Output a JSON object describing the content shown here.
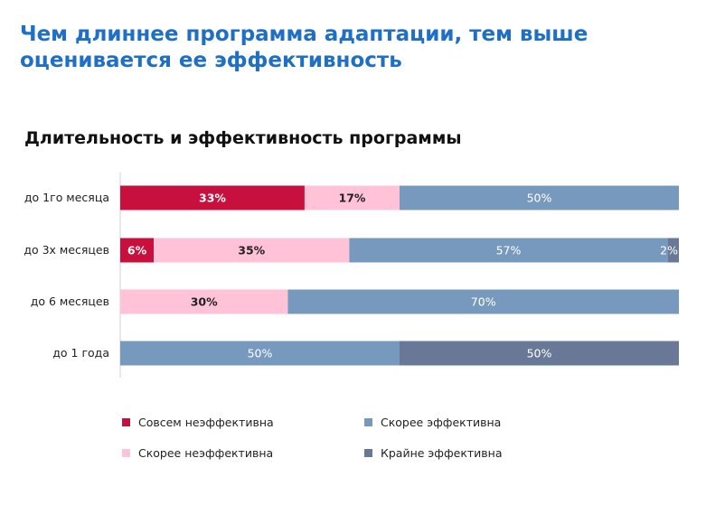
{
  "headline": "Чем длиннее программа адаптации, тем выше оценивается ее эффективность",
  "chart_data": {
    "type": "bar",
    "orientation": "horizontal",
    "stacked": true,
    "title": "Длительность и эффективность программы",
    "xlabel": "",
    "ylabel": "",
    "xlim": [
      0,
      100
    ],
    "grid": false,
    "legend_position": "bottom",
    "categories": [
      "до 1го месяца",
      "до 3х месяцев",
      "до 6 месяцев",
      "до 1 года"
    ],
    "series": [
      {
        "name": "Совсем неэффективна",
        "color": "#c8103e",
        "label_color": "#ffffff",
        "values": [
          33,
          6,
          0,
          0
        ],
        "labels": [
          "33%",
          "6%",
          "",
          ""
        ]
      },
      {
        "name": "Скорее неэффективна",
        "color": "#ffc2d6",
        "label_color": "#222222",
        "values": [
          17,
          35,
          30,
          0
        ],
        "labels": [
          "17%",
          "35%",
          "30%",
          ""
        ]
      },
      {
        "name": "Скорее эффективна",
        "color": "#7899be",
        "label_color": "#ffffff",
        "values": [
          50,
          57,
          70,
          50
        ],
        "labels": [
          "50%",
          "57%",
          "70%",
          "50%"
        ]
      },
      {
        "name": "Крайне эффективна",
        "color": "#687896",
        "label_color": "#ffffff",
        "values": [
          0,
          2,
          0,
          50
        ],
        "labels": [
          "",
          "2%",
          "",
          "50%"
        ]
      }
    ]
  }
}
